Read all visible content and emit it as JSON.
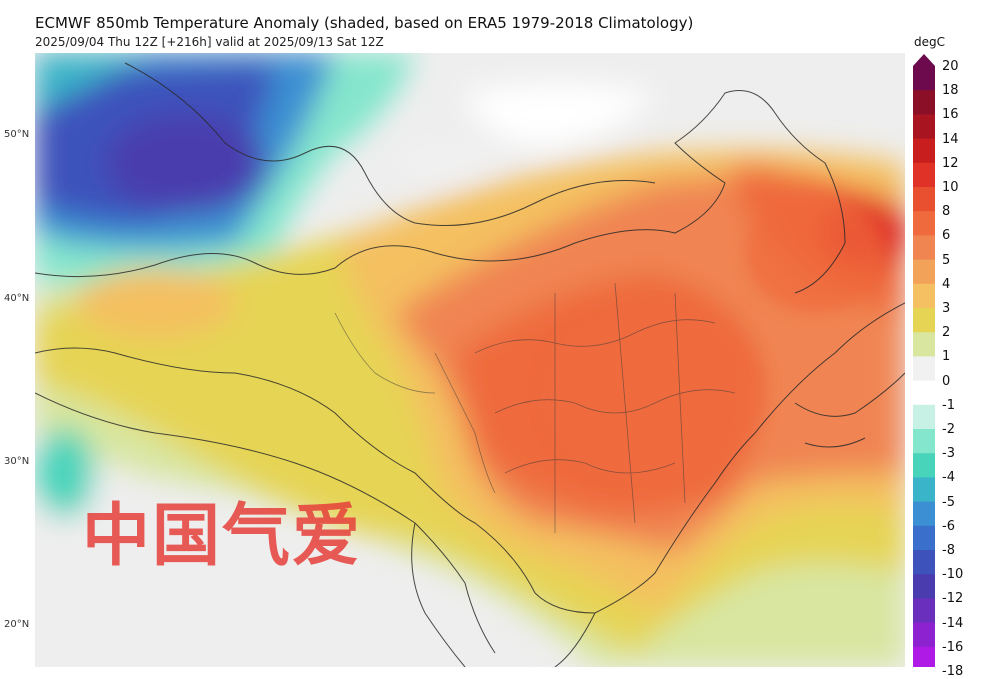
{
  "header": {
    "title": "ECMWF 850mb Temperature Anomaly (shaded, based on ERA5 1979-2018 Climatology)",
    "subtitle": "2025/09/04 Thu 12Z [+216h] valid at 2025/09/13 Sat 12Z"
  },
  "latitudes": [
    "50°N",
    "40°N",
    "30°N",
    "20°N"
  ],
  "colorbar": {
    "unit": "degC",
    "levels": [
      {
        "label": "20",
        "color": "#6d0a4d"
      },
      {
        "label": "18",
        "color": "#8b1027"
      },
      {
        "label": "16",
        "color": "#a8141f"
      },
      {
        "label": "14",
        "color": "#c81e1e"
      },
      {
        "label": "12",
        "color": "#e03226"
      },
      {
        "label": "10",
        "color": "#e8502f"
      },
      {
        "label": "8",
        "color": "#ef6a3d"
      },
      {
        "label": "6",
        "color": "#f08552"
      },
      {
        "label": "5",
        "color": "#f3a25a"
      },
      {
        "label": "4",
        "color": "#f4c061"
      },
      {
        "label": "3",
        "color": "#e6d454"
      },
      {
        "label": "2",
        "color": "#d8e6a0"
      },
      {
        "label": "1",
        "color": "#f1f1f1"
      },
      {
        "label": "0",
        "color": "#ffffff"
      },
      {
        "label": "-1",
        "color": "#c8f1e6"
      },
      {
        "label": "-2",
        "color": "#84e6cc"
      },
      {
        "label": "-3",
        "color": "#48d4bb"
      },
      {
        "label": "-4",
        "color": "#3ab4c8"
      },
      {
        "label": "-5",
        "color": "#3b8fd2"
      },
      {
        "label": "-6",
        "color": "#3a6fcc"
      },
      {
        "label": "-8",
        "color": "#3e52bc"
      },
      {
        "label": "-10",
        "color": "#4a3cae"
      },
      {
        "label": "-12",
        "color": "#6a2fbd"
      },
      {
        "label": "-14",
        "color": "#8d23d0"
      },
      {
        "label": "-16",
        "color": "#b01ae6"
      },
      {
        "label": "-18",
        "color": "#c814f2"
      }
    ]
  },
  "watermark": "中国气爱"
}
